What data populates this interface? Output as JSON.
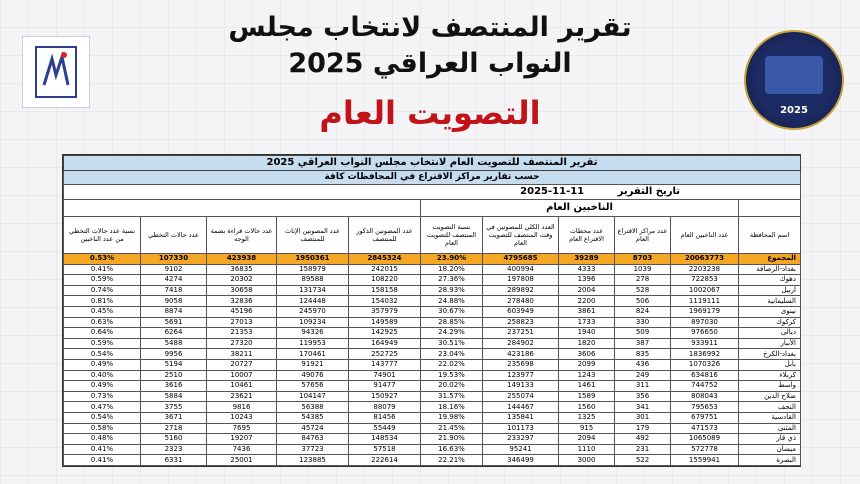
{
  "header": {
    "title_line1": "تقرير المنتصف لانتخاب مجلس",
    "title_line2": "النواب العراقي 2025",
    "subtitle": "التصويت العام",
    "left_logo": "ihec-logo",
    "right_logo": {
      "name": "election-2025-emblem",
      "year": "2025"
    }
  },
  "report": {
    "title": "تقرير المنتصف للتصويت العام لانتخاب مجلس النواب العراقي 2025",
    "subtitle": "حسب تقارير مراكز الاقتراع في المحافظات كافة",
    "date_label": "تاريخ التقرير",
    "date_value": "2025-11-11",
    "group_label": "الناخبين العام"
  },
  "columns": [
    "اسم المحافظة",
    "عدد الناخبين العام",
    "عدد مراكز الاقتراع العام",
    "عدد محطات الاقتراع العام",
    "العدد الكلي للمصوتين في وقت المنتصف للتصويت العام",
    "نسبة التصويت المنتصف للتصويت العام",
    "عدد المصوتين الذكور للمنتصف",
    "عدد المصوتين الإناث للمنتصف",
    "عدد حالات قراءة بصمة الوجه",
    "عدد حالات التخطي",
    "نسبة عدد حالات التخطي من عدد الناخبين"
  ],
  "total": [
    "المجموع",
    "20063773",
    "8703",
    "39289",
    "4795685",
    "23.90%",
    "2845324",
    "1950361",
    "423938",
    "107330",
    "0.53%"
  ],
  "rows": [
    [
      "بغداد-الرصافة",
      "2203238",
      "1039",
      "4333",
      "400994",
      "18.20%",
      "242015",
      "158979",
      "36835",
      "9102",
      "0.41%"
    ],
    [
      "دهوك",
      "722853",
      "278",
      "1396",
      "197808",
      "27.36%",
      "108220",
      "89588",
      "20302",
      "4274",
      "0.59%"
    ],
    [
      "أربيل",
      "1002067",
      "528",
      "2004",
      "289892",
      "28.93%",
      "158158",
      "131734",
      "30658",
      "7418",
      "0.74%"
    ],
    [
      "السليمانية",
      "1119111",
      "506",
      "2200",
      "278480",
      "24.88%",
      "154032",
      "124448",
      "32836",
      "9058",
      "0.81%"
    ],
    [
      "نينوى",
      "1969179",
      "824",
      "3861",
      "603949",
      "30.67%",
      "357979",
      "245970",
      "45196",
      "8874",
      "0.45%"
    ],
    [
      "كركوك",
      "897030",
      "330",
      "1733",
      "258823",
      "28.85%",
      "149589",
      "109234",
      "27013",
      "5691",
      "0.63%"
    ],
    [
      "ديالى",
      "976650",
      "509",
      "1940",
      "237251",
      "24.29%",
      "142925",
      "94326",
      "21353",
      "6264",
      "0.64%"
    ],
    [
      "الأنبار",
      "933911",
      "387",
      "1820",
      "284902",
      "30.51%",
      "164949",
      "119953",
      "27320",
      "5488",
      "0.59%"
    ],
    [
      "بغداد-الكرخ",
      "1836992",
      "835",
      "3606",
      "423186",
      "23.04%",
      "252725",
      "170461",
      "38211",
      "9956",
      "0.54%"
    ],
    [
      "بابل",
      "1070326",
      "436",
      "2099",
      "235698",
      "22.02%",
      "143777",
      "91921",
      "20727",
      "5194",
      "0.49%"
    ],
    [
      "كربلاء",
      "634816",
      "249",
      "1243",
      "123977",
      "19.53%",
      "74901",
      "49076",
      "10007",
      "2510",
      "0.40%"
    ],
    [
      "واسط",
      "744752",
      "311",
      "1461",
      "149133",
      "20.02%",
      "91477",
      "57656",
      "10461",
      "3616",
      "0.49%"
    ],
    [
      "صلاح الدين",
      "808043",
      "356",
      "1589",
      "255074",
      "31.57%",
      "150927",
      "104147",
      "23621",
      "5884",
      "0.73%"
    ],
    [
      "النجف",
      "795653",
      "341",
      "1560",
      "144467",
      "18.16%",
      "88079",
      "56388",
      "9816",
      "3755",
      "0.47%"
    ],
    [
      "القادسية",
      "679751",
      "301",
      "1325",
      "135841",
      "19.98%",
      "81456",
      "54385",
      "10243",
      "3671",
      "0.54%"
    ],
    [
      "المثنى",
      "471573",
      "179",
      "915",
      "101173",
      "21.45%",
      "55449",
      "45724",
      "7695",
      "2718",
      "0.58%"
    ],
    [
      "ذي قار",
      "1065089",
      "492",
      "2094",
      "233297",
      "21.90%",
      "148534",
      "84763",
      "19207",
      "5160",
      "0.48%"
    ],
    [
      "ميسان",
      "572778",
      "231",
      "1110",
      "95241",
      "16.63%",
      "57518",
      "37723",
      "7436",
      "2323",
      "0.41%"
    ],
    [
      "البصرة",
      "1559941",
      "522",
      "3000",
      "346499",
      "22.21%",
      "222614",
      "123885",
      "25001",
      "6331",
      "0.41%"
    ]
  ],
  "colors": {
    "band": "#c6dcef",
    "total_row": "#f5a623",
    "subtitle_red": "#c0141a"
  }
}
